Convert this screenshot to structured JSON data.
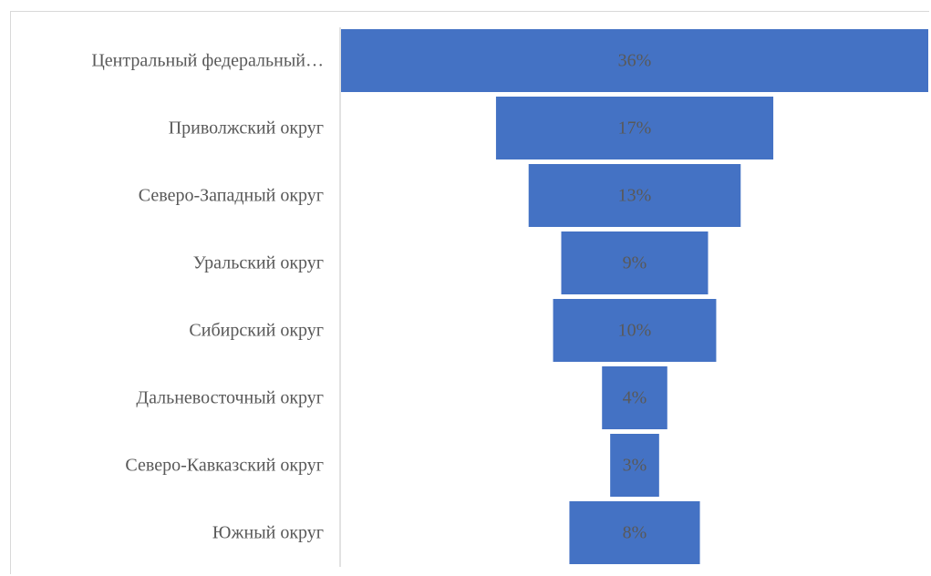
{
  "chart_data": {
    "type": "bar",
    "subtype": "funnel",
    "orientation": "horizontal",
    "categories": [
      "Центральный федеральный…",
      "Приволжский округ",
      "Северо-Западный округ",
      "Уральский округ",
      "Сибирский округ",
      "Дальневосточный округ",
      "Северо-Кавказский округ",
      "Южный округ"
    ],
    "values": [
      36,
      17,
      13,
      9,
      10,
      4,
      3,
      8
    ],
    "data_labels": [
      "36%",
      "17%",
      "13%",
      "9%",
      "10%",
      "4%",
      "3%",
      "8%"
    ],
    "unit": "%",
    "xmax": 36,
    "title": "",
    "xlabel": "",
    "ylabel": "",
    "legend": "none",
    "grid": false,
    "bar_color": "#4472c4"
  }
}
